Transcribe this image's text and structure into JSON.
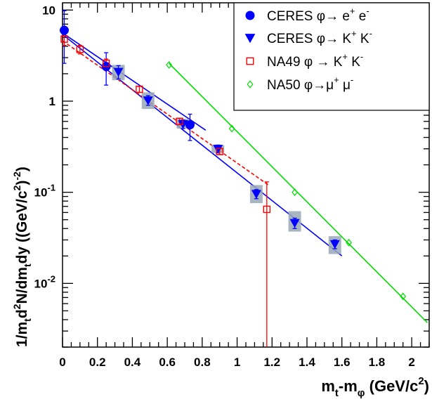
{
  "chart_data": {
    "type": "scatter",
    "title": "",
    "xlabel": "m_t-m_φ (GeV/c^2)",
    "ylabel": "1/m_t d^2N/dm_t dy ((GeV/c^2)^-2)",
    "xlim": [
      0,
      2.1
    ],
    "ylim": [
      0.002,
      12
    ],
    "yscale": "log",
    "x_tick_labels": [
      "0",
      "0.2",
      "0.4",
      "0.6",
      "0.8",
      "1",
      "1.2",
      "1.4",
      "1.6",
      "1.8",
      "2"
    ],
    "y_tick_labels": [
      {
        "value": 10,
        "base": "10",
        "exp": ""
      },
      {
        "value": 1,
        "base": "1",
        "exp": ""
      },
      {
        "value": 0.1,
        "base": "10",
        "exp": "-1"
      },
      {
        "value": 0.01,
        "base": "10",
        "exp": "-2"
      }
    ],
    "legend_position": "top-right",
    "series": [
      {
        "name": "CERES φ→ e+ e-",
        "legend": {
          "pre": "CERES",
          "mid": "φ→ e",
          "sup1": "+",
          "mid2": " e",
          "sup2": "-"
        },
        "color": "#0000ff",
        "marker": "circle",
        "points": [
          {
            "x": 0.01,
            "y": 6.0,
            "ylo": 2.6,
            "yhi": 9.8
          },
          {
            "x": 0.25,
            "y": 2.4,
            "ylo": 1.5,
            "yhi": 3.4
          },
          {
            "x": 0.73,
            "y": 0.55,
            "ylo": 0.37,
            "yhi": 0.72
          }
        ],
        "fit": {
          "x1": 0.0,
          "y1": 5.6,
          "x2": 0.82,
          "y2": 0.48,
          "style": "solid"
        }
      },
      {
        "name": "CERES φ→ K+ K-",
        "legend": {
          "pre": "CERES",
          "mid": "φ→ K",
          "sup1": "+",
          "mid2": " K",
          "sup2": "-"
        },
        "color": "#0000ff",
        "marker": "triangle-down",
        "points": [
          {
            "x": 0.32,
            "y": 2.1,
            "ylo": 1.75,
            "yhi": 2.45,
            "box": [
              1.7,
              2.5
            ]
          },
          {
            "x": 0.49,
            "y": 1.02,
            "ylo": 0.9,
            "yhi": 1.15,
            "box": [
              0.82,
              1.25
            ]
          },
          {
            "x": 0.69,
            "y": 0.56,
            "ylo": 0.5,
            "yhi": 0.62,
            "box": [
              0.5,
              0.64
            ]
          },
          {
            "x": 0.89,
            "y": 0.3,
            "ylo": 0.27,
            "yhi": 0.33,
            "box": [
              0.27,
              0.33
            ]
          },
          {
            "x": 1.11,
            "y": 0.096,
            "ylo": 0.085,
            "yhi": 0.107,
            "box": [
              0.076,
              0.12
            ]
          },
          {
            "x": 1.33,
            "y": 0.046,
            "ylo": 0.04,
            "yhi": 0.052,
            "box": [
              0.037,
              0.062
            ]
          },
          {
            "x": 1.56,
            "y": 0.027,
            "ylo": 0.024,
            "yhi": 0.03,
            "box": [
              0.021,
              0.033
            ]
          }
        ],
        "fit": {
          "x1": 0.0,
          "y1": 5.4,
          "x2": 1.6,
          "y2": 0.02,
          "style": "solid"
        }
      },
      {
        "name": "NA49 φ → K+ K-",
        "legend": {
          "pre": "NA49",
          "mid": "φ → K",
          "sup1": "+",
          "mid2": " K",
          "sup2": "-"
        },
        "color": "#ff0000",
        "marker": "open-square",
        "points": [
          {
            "x": 0.01,
            "y": 4.8,
            "ylo": 4.1,
            "yhi": 5.5
          },
          {
            "x": 0.1,
            "y": 3.7,
            "ylo": 3.3,
            "yhi": 4.1
          },
          {
            "x": 0.25,
            "y": 2.6,
            "ylo": 2.3,
            "yhi": 2.9
          },
          {
            "x": 0.44,
            "y": 1.35,
            "ylo": 1.25,
            "yhi": 1.45
          },
          {
            "x": 0.67,
            "y": 0.6,
            "ylo": 0.55,
            "yhi": 0.65
          },
          {
            "x": 0.9,
            "y": 0.28,
            "ylo": 0.26,
            "yhi": 0.3
          },
          {
            "x": 1.17,
            "y": 0.065,
            "ylo": 0.001,
            "yhi": 0.13
          }
        ],
        "fit": {
          "x1": 0.0,
          "y1": 4.6,
          "x2": 1.18,
          "y2": 0.12,
          "style": "dashed"
        }
      },
      {
        "name": "NA50 φ→μ+ μ-",
        "legend": {
          "pre": "NA50",
          "mid": "φ→μ",
          "sup1": "+",
          "mid2": " μ",
          "sup2": "-"
        },
        "color": "#00dd00",
        "marker": "open-diamond",
        "points": [
          {
            "x": 0.61,
            "y": 2.5
          },
          {
            "x": 0.97,
            "y": 0.5
          },
          {
            "x": 1.33,
            "y": 0.1
          },
          {
            "x": 1.64,
            "y": 0.028
          },
          {
            "x": 1.95,
            "y": 0.0072
          }
        ],
        "fit": {
          "x1": 0.61,
          "y1": 2.6,
          "x2": 2.09,
          "y2": 0.0037,
          "style": "solid"
        }
      }
    ]
  }
}
